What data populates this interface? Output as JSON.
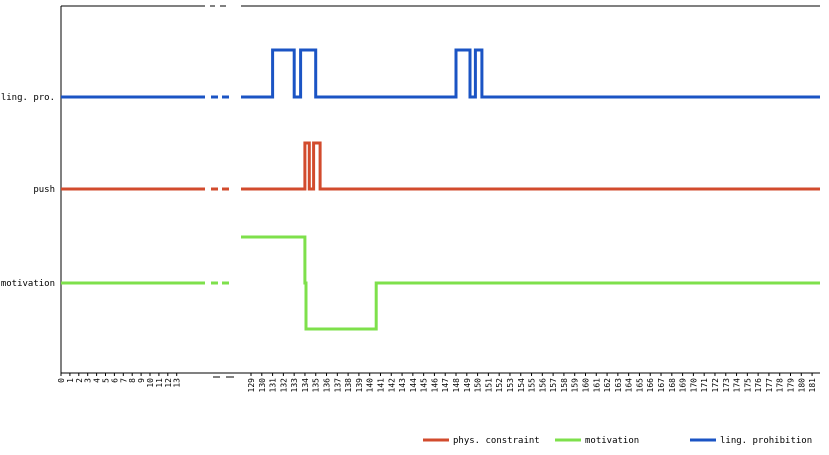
{
  "chart_data": {
    "type": "line",
    "title": "",
    "xlabel": "",
    "ylabel": "",
    "xlim": [
      0,
      181
    ],
    "x_ticks_left": [
      0,
      1,
      2,
      3,
      4,
      5,
      6,
      7,
      8,
      9,
      10,
      11,
      12,
      13
    ],
    "x_ticks_right": [
      129,
      130,
      131,
      132,
      133,
      134,
      135,
      136,
      137,
      138,
      139,
      140,
      141,
      142,
      143,
      144,
      145,
      146,
      147,
      148,
      149,
      150,
      151,
      152,
      153,
      154,
      155,
      156,
      157,
      158,
      159,
      160,
      161,
      162,
      163,
      164,
      165,
      166,
      167,
      168,
      169,
      170,
      171,
      172,
      173,
      174,
      175,
      176,
      177,
      178,
      179,
      180,
      181
    ],
    "row_labels": [
      "ling. pro.",
      "push",
      "motivation"
    ],
    "legend_position": "bottom-right",
    "grid": false,
    "series": [
      {
        "name": "phys. constraint",
        "row": "push",
        "color": "#d24b2d",
        "left_segment": [
          [
            0,
            0
          ],
          [
            13,
            0
          ]
        ],
        "steps": [
          [
            129,
            0
          ],
          [
            134,
            0
          ],
          [
            134,
            1
          ],
          [
            134.4,
            1
          ],
          [
            134.4,
            0
          ],
          [
            134.8,
            0
          ],
          [
            134.8,
            1
          ],
          [
            135.4,
            1
          ],
          [
            135.4,
            0
          ],
          [
            181,
            0
          ]
        ]
      },
      {
        "name": "motivation",
        "row": "motivation",
        "color": "#7ee04b",
        "left_segment": [
          [
            0,
            0
          ],
          [
            13,
            0
          ]
        ],
        "steps": [
          [
            129,
            1
          ],
          [
            134,
            1
          ],
          [
            134,
            0
          ],
          [
            134.1,
            0
          ],
          [
            134.1,
            -1
          ],
          [
            140.6,
            -1
          ],
          [
            140.6,
            0
          ],
          [
            181,
            0
          ]
        ]
      },
      {
        "name": "ling. prohibition",
        "row": "ling. pro.",
        "color": "#1b54c4",
        "left_segment": [
          [
            0,
            0
          ],
          [
            13,
            0
          ]
        ],
        "steps": [
          [
            129,
            0
          ],
          [
            131,
            0
          ],
          [
            131,
            1
          ],
          [
            133,
            1
          ],
          [
            133,
            0
          ],
          [
            133.6,
            0
          ],
          [
            133.6,
            1
          ],
          [
            135,
            1
          ],
          [
            135,
            0
          ],
          [
            148,
            0
          ],
          [
            148,
            1
          ],
          [
            149.3,
            1
          ],
          [
            149.3,
            0
          ],
          [
            149.8,
            0
          ],
          [
            149.8,
            1
          ],
          [
            150.4,
            1
          ],
          [
            150.4,
            0
          ],
          [
            181,
            0
          ]
        ]
      }
    ]
  }
}
